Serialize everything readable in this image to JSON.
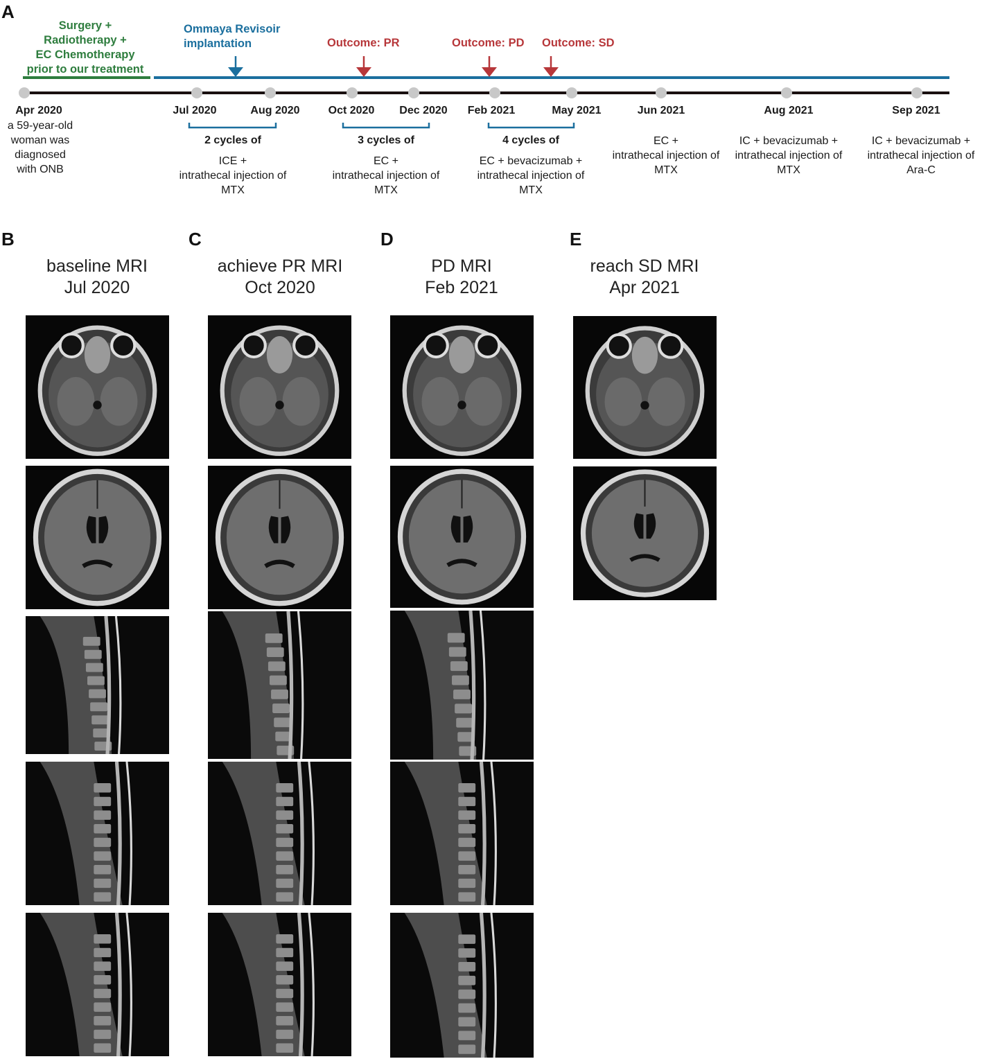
{
  "panels": {
    "a": "A",
    "b": "B",
    "c": "C",
    "d": "D",
    "e": "E"
  },
  "timeline": {
    "prior_treatment": [
      "Surgery +",
      "Radiotherapy +",
      "EC Chemotherapy",
      "prior to our treatment"
    ],
    "ommaya": [
      "Ommaya Revisoir",
      "implantation"
    ],
    "outcomes": [
      "Outcome: PR",
      "Outcome: PD",
      "Outcome: SD"
    ],
    "dates": [
      "Apr 2020",
      "Jul 2020",
      "Aug 2020",
      "Oct 2020",
      "Dec 2020",
      "Feb 2021",
      "May 2021",
      "Jun 2021",
      "Aug 2021",
      "Sep 2021"
    ],
    "initial": [
      "a 59-year-old",
      "woman was",
      "diagnosed",
      "with ONB"
    ],
    "cycles": [
      {
        "title": "2 cycles of",
        "lines": [
          "ICE +",
          "intrathecal injection of",
          "MTX"
        ]
      },
      {
        "title": "3 cycles of",
        "lines": [
          "EC +",
          "intrathecal injection of",
          "MTX"
        ]
      },
      {
        "title": "4 cycles of",
        "lines": [
          "EC + bevacizumab +",
          "intrathecal injection of",
          "MTX"
        ]
      }
    ],
    "singles": [
      {
        "lines": [
          "EC +",
          "intrathecal injection of",
          "MTX"
        ]
      },
      {
        "lines": [
          "IC + bevacizumab +",
          "intrathecal injection of",
          "MTX"
        ]
      },
      {
        "lines": [
          "IC + bevacizumab +",
          "intrathecal injection of",
          "Ara-C"
        ]
      }
    ],
    "colors": {
      "green": "#2e7d3e",
      "blue": "#1b6f9e",
      "red": "#b7373a",
      "axis": "#1a1010",
      "dot": "#c8c8c8"
    }
  },
  "columns": [
    {
      "title": [
        "baseline MRI",
        "Jul 2020"
      ]
    },
    {
      "title": [
        "achieve PR MRI",
        "Oct 2020"
      ]
    },
    {
      "title": [
        "PD MRI",
        "Feb 2021"
      ]
    },
    {
      "title": [
        "reach SD MRI",
        "Apr 2021"
      ]
    }
  ]
}
